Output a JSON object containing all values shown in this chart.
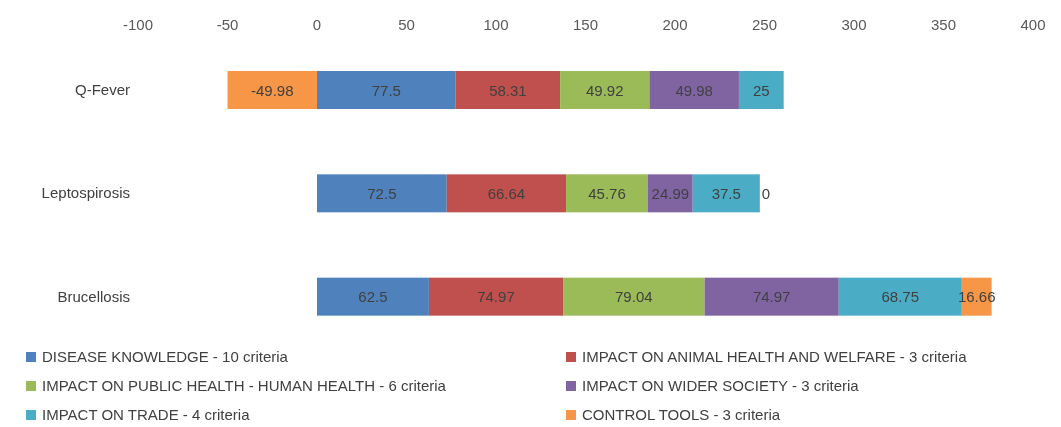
{
  "chart_data": {
    "type": "bar",
    "orientation": "horizontal",
    "stacked": true,
    "categories": [
      "Q-Fever",
      "Leptospirosis",
      "Brucellosis"
    ],
    "series": [
      {
        "name": "DISEASE KNOWLEDGE - 10 criteria",
        "color": "#4f81bd",
        "values": [
          77.5,
          72.5,
          62.5
        ]
      },
      {
        "name": "IMPACT ON ANIMAL HEALTH AND WELFARE - 3 criteria",
        "color": "#c0504d",
        "values": [
          58.31,
          66.64,
          74.97
        ]
      },
      {
        "name": "IMPACT ON PUBLIC HEALTH - HUMAN HEALTH - 6 criteria",
        "color": "#9bbb59",
        "values": [
          49.92,
          45.76,
          79.04
        ]
      },
      {
        "name": "IMPACT ON WIDER SOCIETY - 3 criteria",
        "color": "#8064a2",
        "values": [
          49.98,
          24.99,
          74.97
        ]
      },
      {
        "name": "IMPACT ON TRADE - 4 criteria",
        "color": "#4bacc6",
        "values": [
          25,
          37.5,
          68.75
        ]
      },
      {
        "name": "CONTROL TOOLS - 3 criteria",
        "color": "#f79646",
        "values": [
          -49.98,
          0,
          16.66
        ]
      }
    ],
    "xlim": [
      -100,
      400
    ],
    "xticks": [
      -100,
      -50,
      0,
      50,
      100,
      150,
      200,
      250,
      300,
      350,
      400
    ],
    "legend": "bottom",
    "data_labels": true
  }
}
